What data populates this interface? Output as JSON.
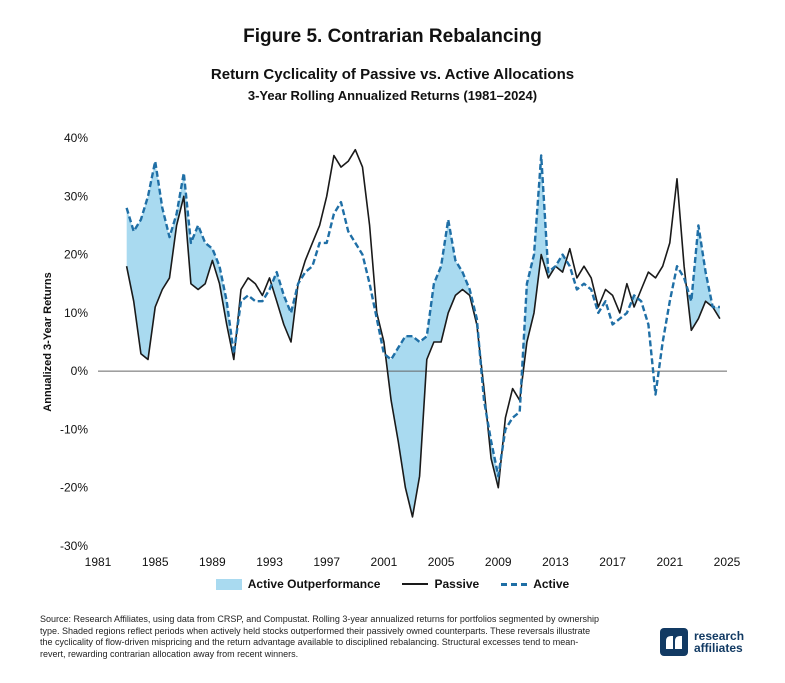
{
  "figure_title": "Figure 5. Contrarian Rebalancing",
  "chart_data": {
    "type": "line",
    "title": "Return Cyclicality of Passive vs. Active Allocations",
    "subtitle": "3-Year Rolling Annualized Returns (1981–2024)",
    "xlabel": "",
    "ylabel": "Annualized 3-Year Returns",
    "xlim": [
      1981,
      2025
    ],
    "ylim": [
      -30,
      40
    ],
    "x_ticks": [
      1981,
      1985,
      1989,
      1993,
      1997,
      2001,
      2005,
      2009,
      2013,
      2017,
      2021,
      2025
    ],
    "y_ticks": [
      -30,
      -20,
      -10,
      0,
      10,
      20,
      30,
      40
    ],
    "y_tick_labels": [
      "-30%",
      "-20%",
      "-10%",
      "0%",
      "10%",
      "20%",
      "30%",
      "40%"
    ],
    "grid": false,
    "zero_line": true,
    "legend_position": "bottom",
    "x": [
      1983.0,
      1983.5,
      1984.0,
      1984.5,
      1985.0,
      1985.5,
      1986.0,
      1986.5,
      1987.0,
      1987.5,
      1988.0,
      1988.5,
      1989.0,
      1989.5,
      1990.0,
      1990.5,
      1991.0,
      1991.5,
      1992.0,
      1992.5,
      1993.0,
      1993.5,
      1994.0,
      1994.5,
      1995.0,
      1995.5,
      1996.0,
      1996.5,
      1997.0,
      1997.5,
      1998.0,
      1998.5,
      1999.0,
      1999.5,
      2000.0,
      2000.5,
      2001.0,
      2001.5,
      2002.0,
      2002.5,
      2003.0,
      2003.5,
      2004.0,
      2004.5,
      2005.0,
      2005.5,
      2006.0,
      2006.5,
      2007.0,
      2007.5,
      2008.0,
      2008.5,
      2009.0,
      2009.5,
      2010.0,
      2010.5,
      2011.0,
      2011.5,
      2012.0,
      2012.5,
      2013.0,
      2013.5,
      2014.0,
      2014.5,
      2015.0,
      2015.5,
      2016.0,
      2016.5,
      2017.0,
      2017.5,
      2018.0,
      2018.5,
      2019.0,
      2019.5,
      2020.0,
      2020.5,
      2021.0,
      2021.5,
      2022.0,
      2022.5,
      2023.0,
      2023.5,
      2024.0,
      2024.5
    ],
    "series": [
      {
        "name": "Passive",
        "color": "#1a1a1a",
        "style": "solid",
        "values": [
          18,
          12,
          3,
          2,
          11,
          14,
          16,
          25,
          30,
          15,
          14,
          15,
          19,
          15,
          8,
          2,
          14,
          16,
          15,
          13,
          16,
          12,
          8,
          5,
          15,
          19,
          22,
          25,
          30,
          37,
          35,
          36,
          38,
          35,
          25,
          10,
          5,
          -5,
          -12,
          -20,
          -25,
          -18,
          2,
          5,
          5,
          10,
          13,
          14,
          13,
          8,
          -3,
          -15,
          -20,
          -8,
          -3,
          -5,
          5,
          10,
          20,
          16,
          18,
          17,
          21,
          16,
          18,
          16,
          11,
          14,
          13,
          10,
          15,
          11,
          14,
          17,
          16,
          18,
          22,
          33,
          18,
          7,
          9,
          12,
          11,
          9
        ]
      },
      {
        "name": "Active",
        "color": "#1f6fa6",
        "style": "dashed",
        "values": [
          28,
          24,
          26,
          30,
          36,
          28,
          23,
          27,
          34,
          22,
          25,
          22,
          21,
          18,
          12,
          3,
          12,
          13,
          12,
          12,
          14,
          17,
          13,
          10,
          15,
          17,
          18,
          22,
          22,
          27,
          29,
          24,
          22,
          20,
          15,
          9,
          3,
          2,
          4,
          6,
          6,
          5,
          6,
          15,
          18,
          26,
          19,
          17,
          14,
          9,
          -5,
          -12,
          -18,
          -10,
          -8,
          -7,
          15,
          20,
          37,
          17,
          18,
          20,
          18,
          14,
          15,
          14,
          10,
          12,
          8,
          9,
          10,
          13,
          12,
          8,
          -4,
          5,
          12,
          18,
          16,
          12,
          25,
          17,
          11,
          11
        ]
      }
    ],
    "shaded_region": {
      "name": "Active Outperformance",
      "color": "#a9daf0",
      "rule": "Active > Passive"
    }
  },
  "legend": {
    "outperformance": "Active Outperformance",
    "passive": "Passive",
    "active": "Active"
  },
  "source_text": "Source: Research Affiliates, using data from CRSP, and Compustat. Rolling 3-year annualized returns for portfolios segmented by ownership type. Shaded regions reflect periods when actively held stocks outperformed their passively owned counterparts. These reversals illustrate the cyclicality of flow-driven mispricing and the return advantage available to disciplined rebalancing. Structural excesses tend to mean-revert, rewarding contrarian allocation away from recent winners.",
  "logo": {
    "line1": "research",
    "line2": "affiliates",
    "icon": "research-affiliates-logo"
  }
}
